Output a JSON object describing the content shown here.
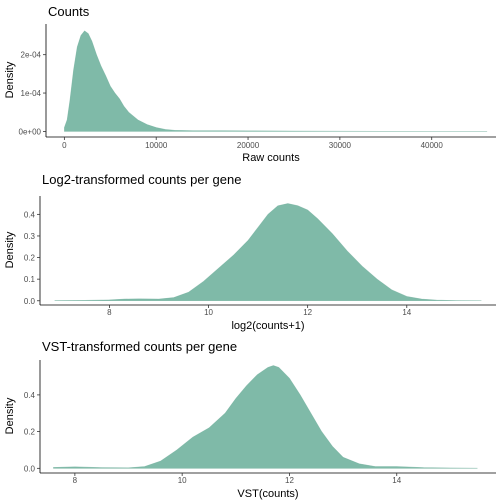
{
  "colors": {
    "fill": "#7fbaa8",
    "stroke": "#6fae9b"
  },
  "chart_data": [
    {
      "type": "area",
      "title": "Counts",
      "xlabel": "Raw counts",
      "ylabel": "Density",
      "xlim": [
        -2000,
        47000
      ],
      "ylim": [
        -1.2e-05,
        0.00028
      ],
      "xticks": [
        0,
        10000,
        20000,
        30000,
        40000
      ],
      "xtick_labels": [
        "0",
        "10000",
        "20000",
        "30000",
        "40000"
      ],
      "yticks": [
        0,
        0.0001,
        0.0002
      ],
      "ytick_labels": [
        "0e+00",
        "1e-04",
        "2e-04"
      ],
      "grid": false,
      "x": [
        0,
        300,
        600,
        1000,
        1400,
        1800,
        2200,
        2600,
        3000,
        3500,
        4000,
        4500,
        5000,
        5500,
        6000,
        6500,
        7000,
        8000,
        9000,
        10000,
        11000,
        12000,
        14000,
        17000,
        20000,
        25000,
        30000,
        35000,
        40000,
        46000
      ],
      "y": [
        1e-05,
        3e-05,
        8e-05,
        0.00016,
        0.00022,
        0.00025,
        0.000262,
        0.000255,
        0.000235,
        0.0002,
        0.00017,
        0.000145,
        0.000118,
        0.0001,
        8.5e-05,
        6.5e-05,
        5e-05,
        3e-05,
        1.8e-05,
        1e-05,
        5e-06,
        3e-06,
        2e-06,
        2e-06,
        1.5e-06,
        1e-06,
        5e-07,
        3e-07,
        2e-07,
        1e-07
      ]
    },
    {
      "type": "area",
      "title": "Log2-transformed counts per gene",
      "xlabel": "log2(counts+1)",
      "ylabel": "Density",
      "xlim": [
        6.6,
        15.8
      ],
      "ylim": [
        -0.015,
        0.485
      ],
      "xticks": [
        8,
        10,
        12,
        14
      ],
      "xtick_labels": [
        "8",
        "10",
        "12",
        "14"
      ],
      "yticks": [
        0,
        0.1,
        0.2,
        0.3,
        0.4
      ],
      "ytick_labels": [
        "0.0",
        "0.1",
        "0.2",
        "0.3",
        "0.4"
      ],
      "grid": false,
      "x": [
        6.9,
        7.5,
        8.0,
        8.3,
        8.6,
        9.0,
        9.3,
        9.6,
        9.9,
        10.2,
        10.5,
        10.8,
        11.0,
        11.2,
        11.4,
        11.6,
        11.8,
        12.0,
        12.2,
        12.5,
        12.8,
        13.1,
        13.4,
        13.7,
        14.0,
        14.3,
        14.6,
        15.0,
        15.5
      ],
      "y": [
        0.001,
        0.002,
        0.004,
        0.008,
        0.009,
        0.008,
        0.015,
        0.04,
        0.09,
        0.15,
        0.21,
        0.28,
        0.34,
        0.4,
        0.44,
        0.45,
        0.44,
        0.42,
        0.38,
        0.31,
        0.23,
        0.16,
        0.1,
        0.05,
        0.02,
        0.008,
        0.003,
        0.001,
        0.0005
      ]
    },
    {
      "type": "area",
      "title": "VST-transformed counts per gene",
      "xlabel": "VST(counts)",
      "ylabel": "Density",
      "xlim": [
        7.35,
        15.85
      ],
      "ylim": [
        -0.02,
        0.59
      ],
      "xticks": [
        8,
        10,
        12,
        14
      ],
      "xtick_labels": [
        "8",
        "10",
        "12",
        "14"
      ],
      "yticks": [
        0,
        0.2,
        0.4
      ],
      "ytick_labels": [
        "0.0",
        "0.2",
        "0.4"
      ],
      "grid": false,
      "x": [
        7.6,
        8.0,
        8.5,
        9.0,
        9.3,
        9.6,
        9.9,
        10.2,
        10.5,
        10.8,
        11.0,
        11.2,
        11.4,
        11.6,
        11.7,
        11.8,
        12.0,
        12.2,
        12.4,
        12.6,
        12.8,
        13.0,
        13.3,
        13.6,
        14.0,
        14.5,
        15.0,
        15.5
      ],
      "y": [
        0.005,
        0.008,
        0.004,
        0.003,
        0.01,
        0.04,
        0.1,
        0.17,
        0.22,
        0.3,
        0.38,
        0.45,
        0.51,
        0.55,
        0.56,
        0.55,
        0.49,
        0.4,
        0.3,
        0.2,
        0.12,
        0.06,
        0.025,
        0.01,
        0.01,
        0.004,
        0.002,
        0.001
      ]
    }
  ]
}
